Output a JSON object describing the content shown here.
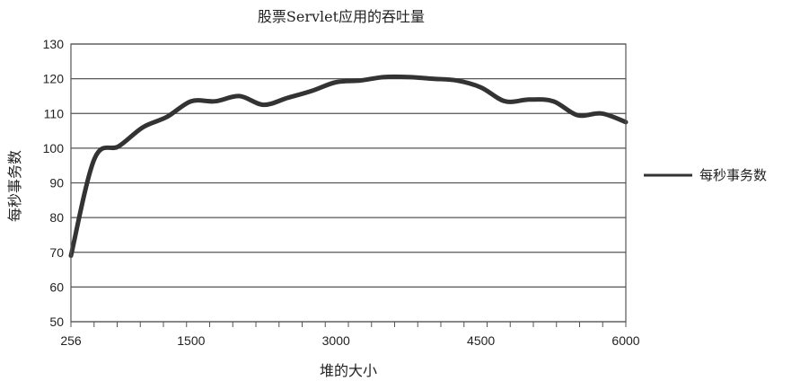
{
  "chart_data": {
    "type": "line",
    "title": "股票Servlet应用的吞吐量",
    "xlabel": "堆的大小",
    "ylabel": "每秒事务数",
    "xlim": [
      256,
      6000
    ],
    "ylim": [
      50,
      130
    ],
    "xticks": [
      256,
      1500,
      3000,
      4500,
      6000
    ],
    "yticks": [
      50,
      60,
      70,
      80,
      90,
      100,
      110,
      120,
      130
    ],
    "grid": true,
    "legend": "right",
    "series": [
      {
        "name": "每秒事务数",
        "color": "#333333",
        "x": [
          256,
          500,
          750,
          1000,
          1250,
          1500,
          1750,
          2000,
          2250,
          2500,
          2750,
          3000,
          3250,
          3500,
          3750,
          4000,
          4250,
          4500,
          4750,
          5000,
          5250,
          5500,
          5750,
          6000
        ],
        "y": [
          69,
          97,
          100.5,
          106,
          109,
          113.5,
          113.5,
          115,
          112.5,
          114.5,
          116.5,
          119,
          119.5,
          120.5,
          120.5,
          120,
          119.5,
          117.5,
          113.5,
          114,
          113.5,
          109.5,
          110,
          107.5
        ]
      }
    ]
  }
}
